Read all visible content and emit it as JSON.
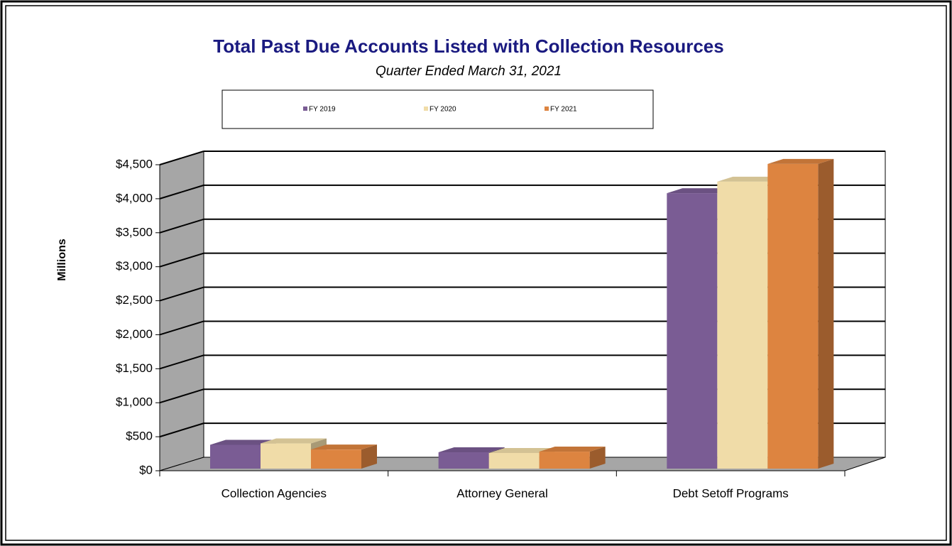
{
  "chart_data": {
    "type": "bar3d",
    "title": "Total Past Due Accounts Listed with Collection Resources",
    "subtitle": "Quarter Ended March 31, 2021",
    "ylabel": "Millions",
    "categories": [
      "Collection Agencies",
      "Attorney General",
      "Debt Setoff Programs"
    ],
    "series": [
      {
        "name": "FY 2019",
        "color": "#7a5c94",
        "values": [
          350,
          240,
          4050
        ]
      },
      {
        "name": "FY 2020",
        "color": "#f0dca8",
        "values": [
          370,
          230,
          4220
        ]
      },
      {
        "name": "FY 2021",
        "color": "#dd8440",
        "values": [
          280,
          250,
          4480
        ]
      }
    ],
    "ylim": [
      0,
      4500
    ],
    "yticks": [
      {
        "value": 0,
        "label": "$0"
      },
      {
        "value": 500,
        "label": "$500"
      },
      {
        "value": 1000,
        "label": "$1,000"
      },
      {
        "value": 1500,
        "label": "$1,500"
      },
      {
        "value": 2000,
        "label": "$2,000"
      },
      {
        "value": 2500,
        "label": "$2,500"
      },
      {
        "value": 3000,
        "label": "$3,000"
      },
      {
        "value": 3500,
        "label": "$3,500"
      },
      {
        "value": 4000,
        "label": "$4,000"
      },
      {
        "value": 4500,
        "label": "$4,500"
      }
    ],
    "grid": true,
    "legend": "top"
  }
}
